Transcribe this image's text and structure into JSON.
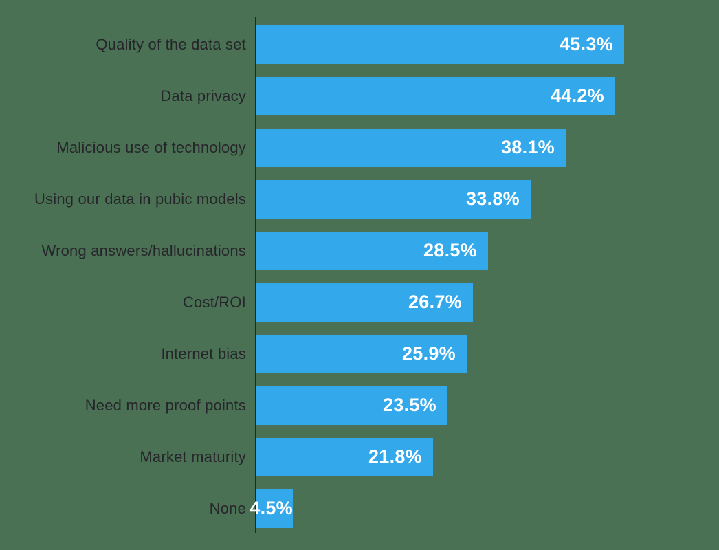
{
  "chart_data": {
    "type": "bar",
    "orientation": "horizontal",
    "title": "",
    "xlabel": "",
    "ylabel": "",
    "grid": false,
    "legend": false,
    "xlim": [
      0,
      57
    ],
    "value_label_position": "inside-end",
    "categories": [
      "Quality of the data set",
      "Data privacy",
      "Malicious use of technology",
      "Using our data in pubic models",
      "Wrong answers/hallucinations",
      "Cost/ROI",
      "Internet bias",
      "Need more proof points",
      "Market maturity",
      "None"
    ],
    "values": [
      45.3,
      44.2,
      38.1,
      33.8,
      28.5,
      26.7,
      25.9,
      23.5,
      21.8,
      4.5
    ],
    "value_labels": [
      "45.3%",
      "44.2%",
      "38.1%",
      "33.8%",
      "28.5%",
      "26.7%",
      "25.9%",
      "23.5%",
      "21.8%",
      "4.5%"
    ],
    "bar_color": "#33A9EC",
    "value_label_color": "#FFFFFF",
    "category_label_color": "#26252B",
    "axis_line_color": "#26252B",
    "background_color": "#4A7153"
  }
}
